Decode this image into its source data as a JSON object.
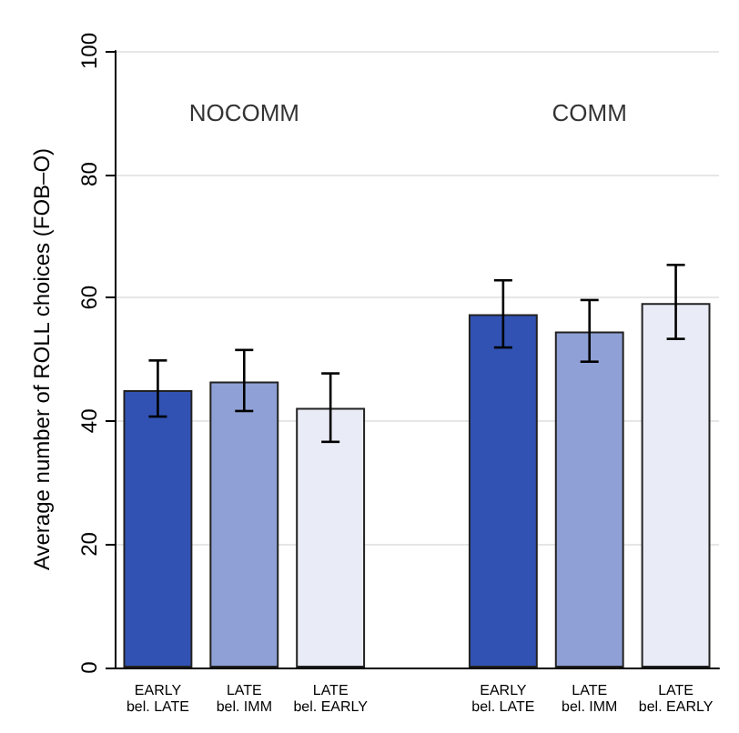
{
  "chart_data": {
    "type": "bar",
    "ylabel": "Average number of ROLL choices (FOB–O)",
    "categories": [
      "EARLY\nbel. LATE",
      "LATE\nbel. IMM",
      "LATE\nbel. EARLY",
      null,
      "EARLY\nbel. LATE",
      "LATE\nbel. IMM",
      "LATE\nbel. EARLY"
    ],
    "values": [
      45.0,
      46.4,
      42.1,
      null,
      57.3,
      54.5,
      59.1
    ],
    "colors": [
      "#3152b3",
      "#8fa0d6",
      "#e9ecf6",
      null,
      "#3152b3",
      "#8fa0d6",
      "#e9ecf6"
    ],
    "errors": [
      [
        40.7,
        49.8
      ],
      [
        41.6,
        51.5
      ],
      [
        36.6,
        47.7
      ],
      null,
      [
        51.9,
        62.8
      ],
      [
        49.6,
        59.6
      ],
      [
        53.3,
        65.3
      ]
    ],
    "ylim": [
      0,
      100
    ],
    "yticks": [
      0,
      20,
      40,
      60,
      80,
      100
    ],
    "grid": "y",
    "annotations": [
      "NOCOMM",
      "COMM"
    ]
  }
}
